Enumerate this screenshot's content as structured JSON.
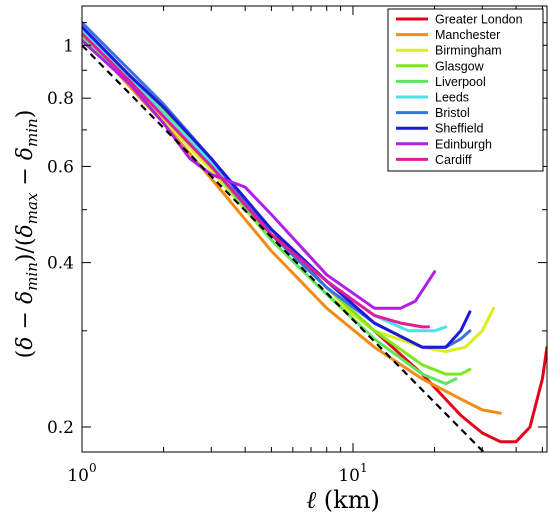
{
  "chart_data": {
    "type": "line",
    "x_scale": "log",
    "y_scale": "log",
    "xlim": [
      1,
      52
    ],
    "ylim": [
      0.18,
      1.18
    ],
    "xlabel": "ℓ (km)",
    "ylabel": "(δ − δmin)/(δmax − δmin)",
    "x_ticks": [
      {
        "value": 1,
        "label": "10",
        "exp": "0"
      },
      {
        "value": 10,
        "label": "10",
        "exp": "1"
      }
    ],
    "y_ticks": [
      {
        "value": 0.2,
        "label": "0.2"
      },
      {
        "value": 0.4,
        "label": "0.4"
      },
      {
        "value": 0.6,
        "label": "0.6"
      },
      {
        "value": 0.8,
        "label": "0.8"
      },
      {
        "value": 1.0,
        "label": "1"
      }
    ],
    "legend_position": "top-right",
    "series": [
      {
        "name": "Greater London",
        "color": "#e8001a",
        "points": [
          [
            1,
            1.06
          ],
          [
            1.5,
            0.86
          ],
          [
            2,
            0.74
          ],
          [
            3,
            0.6
          ],
          [
            5,
            0.46
          ],
          [
            8,
            0.36
          ],
          [
            12,
            0.3
          ],
          [
            18,
            0.25
          ],
          [
            25,
            0.21
          ],
          [
            30,
            0.195
          ],
          [
            35,
            0.188
          ],
          [
            40,
            0.188
          ],
          [
            45,
            0.2
          ],
          [
            50,
            0.245
          ],
          [
            52,
            0.28
          ]
        ]
      },
      {
        "name": "Manchester",
        "color": "#f28c16",
        "points": [
          [
            1,
            1.05
          ],
          [
            1.5,
            0.84
          ],
          [
            2,
            0.72
          ],
          [
            3,
            0.57
          ],
          [
            5,
            0.42
          ],
          [
            8,
            0.33
          ],
          [
            12,
            0.28
          ],
          [
            18,
            0.245
          ],
          [
            25,
            0.225
          ],
          [
            30,
            0.215
          ],
          [
            35,
            0.212
          ]
        ]
      },
      {
        "name": "Birmingham",
        "color": "#d9ee1a",
        "points": [
          [
            1,
            1.04
          ],
          [
            1.5,
            0.85
          ],
          [
            2,
            0.73
          ],
          [
            3,
            0.59
          ],
          [
            5,
            0.44
          ],
          [
            8,
            0.35
          ],
          [
            12,
            0.3
          ],
          [
            18,
            0.28
          ],
          [
            22,
            0.275
          ],
          [
            26,
            0.28
          ],
          [
            30,
            0.3
          ],
          [
            33,
            0.33
          ]
        ]
      },
      {
        "name": "Glasgow",
        "color": "#7de81a",
        "points": [
          [
            1,
            1.07
          ],
          [
            1.5,
            0.88
          ],
          [
            2,
            0.76
          ],
          [
            3,
            0.62
          ],
          [
            5,
            0.45
          ],
          [
            8,
            0.36
          ],
          [
            12,
            0.3
          ],
          [
            18,
            0.26
          ],
          [
            22,
            0.25
          ],
          [
            25,
            0.25
          ],
          [
            27,
            0.255
          ]
        ]
      },
      {
        "name": "Liverpool",
        "color": "#5ce85c",
        "points": [
          [
            1,
            1.03
          ],
          [
            1.5,
            0.86
          ],
          [
            2,
            0.74
          ],
          [
            3,
            0.6
          ],
          [
            5,
            0.44
          ],
          [
            8,
            0.35
          ],
          [
            12,
            0.29
          ],
          [
            18,
            0.25
          ],
          [
            22,
            0.24
          ],
          [
            24,
            0.245
          ]
        ]
      },
      {
        "name": "Leeds",
        "color": "#4de2e8",
        "points": [
          [
            1,
            1.06
          ],
          [
            1.5,
            0.87
          ],
          [
            2,
            0.75
          ],
          [
            3,
            0.61
          ],
          [
            5,
            0.46
          ],
          [
            8,
            0.37
          ],
          [
            12,
            0.32
          ],
          [
            16,
            0.3
          ],
          [
            20,
            0.3
          ],
          [
            22,
            0.305
          ]
        ]
      },
      {
        "name": "Bristol",
        "color": "#3a72e6",
        "points": [
          [
            1,
            1.1
          ],
          [
            1.5,
            0.9
          ],
          [
            2,
            0.78
          ],
          [
            3,
            0.62
          ],
          [
            5,
            0.45
          ],
          [
            8,
            0.36
          ],
          [
            12,
            0.31
          ],
          [
            18,
            0.28
          ],
          [
            22,
            0.28
          ],
          [
            25,
            0.29
          ],
          [
            27,
            0.3
          ]
        ]
      },
      {
        "name": "Sheffield",
        "color": "#2018d8",
        "points": [
          [
            1,
            1.08
          ],
          [
            1.5,
            0.88
          ],
          [
            2,
            0.77
          ],
          [
            3,
            0.62
          ],
          [
            5,
            0.46
          ],
          [
            8,
            0.37
          ],
          [
            12,
            0.31
          ],
          [
            18,
            0.28
          ],
          [
            22,
            0.28
          ],
          [
            25,
            0.3
          ],
          [
            27,
            0.325
          ]
        ]
      },
      {
        "name": "Edinburgh",
        "color": "#b01ee8",
        "points": [
          [
            1,
            1.02
          ],
          [
            1.5,
            0.85
          ],
          [
            2,
            0.72
          ],
          [
            2.5,
            0.62
          ],
          [
            3,
            0.58
          ],
          [
            4,
            0.55
          ],
          [
            5,
            0.49
          ],
          [
            8,
            0.38
          ],
          [
            12,
            0.33
          ],
          [
            15,
            0.33
          ],
          [
            17,
            0.34
          ],
          [
            19,
            0.37
          ],
          [
            20,
            0.385
          ]
        ]
      },
      {
        "name": "Cardiff",
        "color": "#e01c9c",
        "points": [
          [
            1,
            1.05
          ],
          [
            1.5,
            0.86
          ],
          [
            2,
            0.74
          ],
          [
            3,
            0.6
          ],
          [
            5,
            0.45
          ],
          [
            8,
            0.37
          ],
          [
            12,
            0.32
          ],
          [
            15,
            0.31
          ],
          [
            18,
            0.305
          ],
          [
            19,
            0.305
          ]
        ]
      }
    ],
    "reference_line": {
      "style": "dashed",
      "color": "#000000",
      "points": [
        [
          1,
          1.0
        ],
        [
          34,
          0.17
        ]
      ]
    }
  }
}
